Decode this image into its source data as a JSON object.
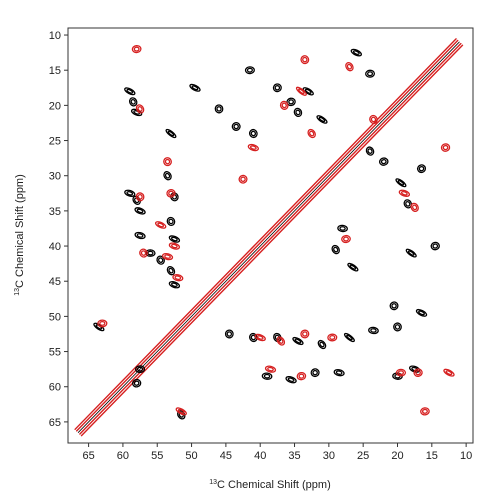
{
  "chart_data": {
    "type": "heatmap",
    "subtype": "2D NMR 13C-13C correlation contour overlay",
    "xlabel": "Chemical Shift (ppm)",
    "xlabel_sup": "13",
    "xlabel_prefix": "C",
    "ylabel": "Chemical Shift (ppm)",
    "ylabel_sup": "13",
    "ylabel_prefix": "C",
    "xlim": [
      68,
      9
    ],
    "ylim": [
      9,
      68
    ],
    "x_ticks": [
      65,
      60,
      55,
      50,
      45,
      40,
      35,
      30,
      25,
      20,
      15,
      10
    ],
    "y_ticks": [
      10,
      15,
      20,
      25,
      30,
      35,
      40,
      45,
      50,
      55,
      60,
      65
    ],
    "x_reversed": true,
    "y_reversed": true,
    "grid": false,
    "legend": "none",
    "colors": {
      "series_a": "#000000",
      "series_b": "#d62020"
    },
    "diagonal": {
      "from": 66.5,
      "to": 11.0
    },
    "series": [
      {
        "color": "series_a",
        "peaks": [
          [
            58.5,
            19.5
          ],
          [
            58.0,
            21.0
          ],
          [
            59.0,
            18.0
          ],
          [
            58.0,
            33.5
          ],
          [
            57.5,
            35.0
          ],
          [
            59.0,
            32.5
          ],
          [
            57.5,
            38.5
          ],
          [
            56.0,
            41.0
          ],
          [
            54.5,
            42.0
          ],
          [
            53.0,
            24.0
          ],
          [
            53.5,
            30.0
          ],
          [
            52.5,
            33.0
          ],
          [
            53.0,
            36.5
          ],
          [
            52.5,
            39.0
          ],
          [
            53.0,
            43.5
          ],
          [
            52.5,
            45.5
          ],
          [
            49.5,
            17.5
          ],
          [
            46.0,
            20.5
          ],
          [
            41.5,
            15.0
          ],
          [
            37.5,
            17.5
          ],
          [
            35.5,
            19.5
          ],
          [
            34.5,
            21.0
          ],
          [
            33.0,
            18.0
          ],
          [
            31.0,
            22.0
          ],
          [
            26.0,
            12.5
          ],
          [
            24.0,
            15.5
          ],
          [
            24.0,
            26.5
          ],
          [
            22.0,
            28.0
          ],
          [
            19.5,
            31.0
          ],
          [
            18.5,
            34.0
          ],
          [
            16.5,
            29.0
          ],
          [
            14.5,
            40.0
          ],
          [
            18.0,
            41.0
          ],
          [
            28.0,
            37.5
          ],
          [
            29.0,
            40.5
          ],
          [
            26.5,
            43.0
          ],
          [
            41.0,
            24.0
          ],
          [
            43.5,
            23.0
          ],
          [
            44.5,
            52.5
          ],
          [
            41.0,
            53.0
          ],
          [
            37.5,
            53.0
          ],
          [
            34.5,
            53.5
          ],
          [
            31.0,
            54.0
          ],
          [
            27.0,
            53.0
          ],
          [
            23.5,
            52.0
          ],
          [
            20.0,
            51.5
          ],
          [
            39.0,
            58.5
          ],
          [
            35.5,
            59.0
          ],
          [
            32.0,
            58.0
          ],
          [
            28.5,
            58.0
          ],
          [
            20.0,
            58.5
          ],
          [
            17.5,
            57.5
          ],
          [
            57.5,
            57.5
          ],
          [
            63.5,
            51.5
          ],
          [
            51.5,
            64.0
          ],
          [
            58.0,
            59.5
          ],
          [
            20.5,
            48.5
          ],
          [
            16.5,
            49.5
          ]
        ]
      },
      {
        "color": "series_b",
        "peaks": [
          [
            58.0,
            12.0
          ],
          [
            57.5,
            20.5
          ],
          [
            57.5,
            33.0
          ],
          [
            57.0,
            41.0
          ],
          [
            54.5,
            37.0
          ],
          [
            53.5,
            28.0
          ],
          [
            53.0,
            32.5
          ],
          [
            52.5,
            40.0
          ],
          [
            52.0,
            44.5
          ],
          [
            53.5,
            41.5
          ],
          [
            41.0,
            26.0
          ],
          [
            36.5,
            20.0
          ],
          [
            34.0,
            18.0
          ],
          [
            33.5,
            13.5
          ],
          [
            27.0,
            14.5
          ],
          [
            23.5,
            22.0
          ],
          [
            19.0,
            32.5
          ],
          [
            17.5,
            34.5
          ],
          [
            13.0,
            26.0
          ],
          [
            27.5,
            39.0
          ],
          [
            40.0,
            53.0
          ],
          [
            37.0,
            53.5
          ],
          [
            33.5,
            52.5
          ],
          [
            29.5,
            53.0
          ],
          [
            38.5,
            57.5
          ],
          [
            34.0,
            58.5
          ],
          [
            19.5,
            58.0
          ],
          [
            17.0,
            58.0
          ],
          [
            12.5,
            58.0
          ],
          [
            16.0,
            63.5
          ],
          [
            51.5,
            63.5
          ],
          [
            63.0,
            51.0
          ],
          [
            42.5,
            30.5
          ],
          [
            32.5,
            24.0
          ]
        ]
      }
    ]
  }
}
